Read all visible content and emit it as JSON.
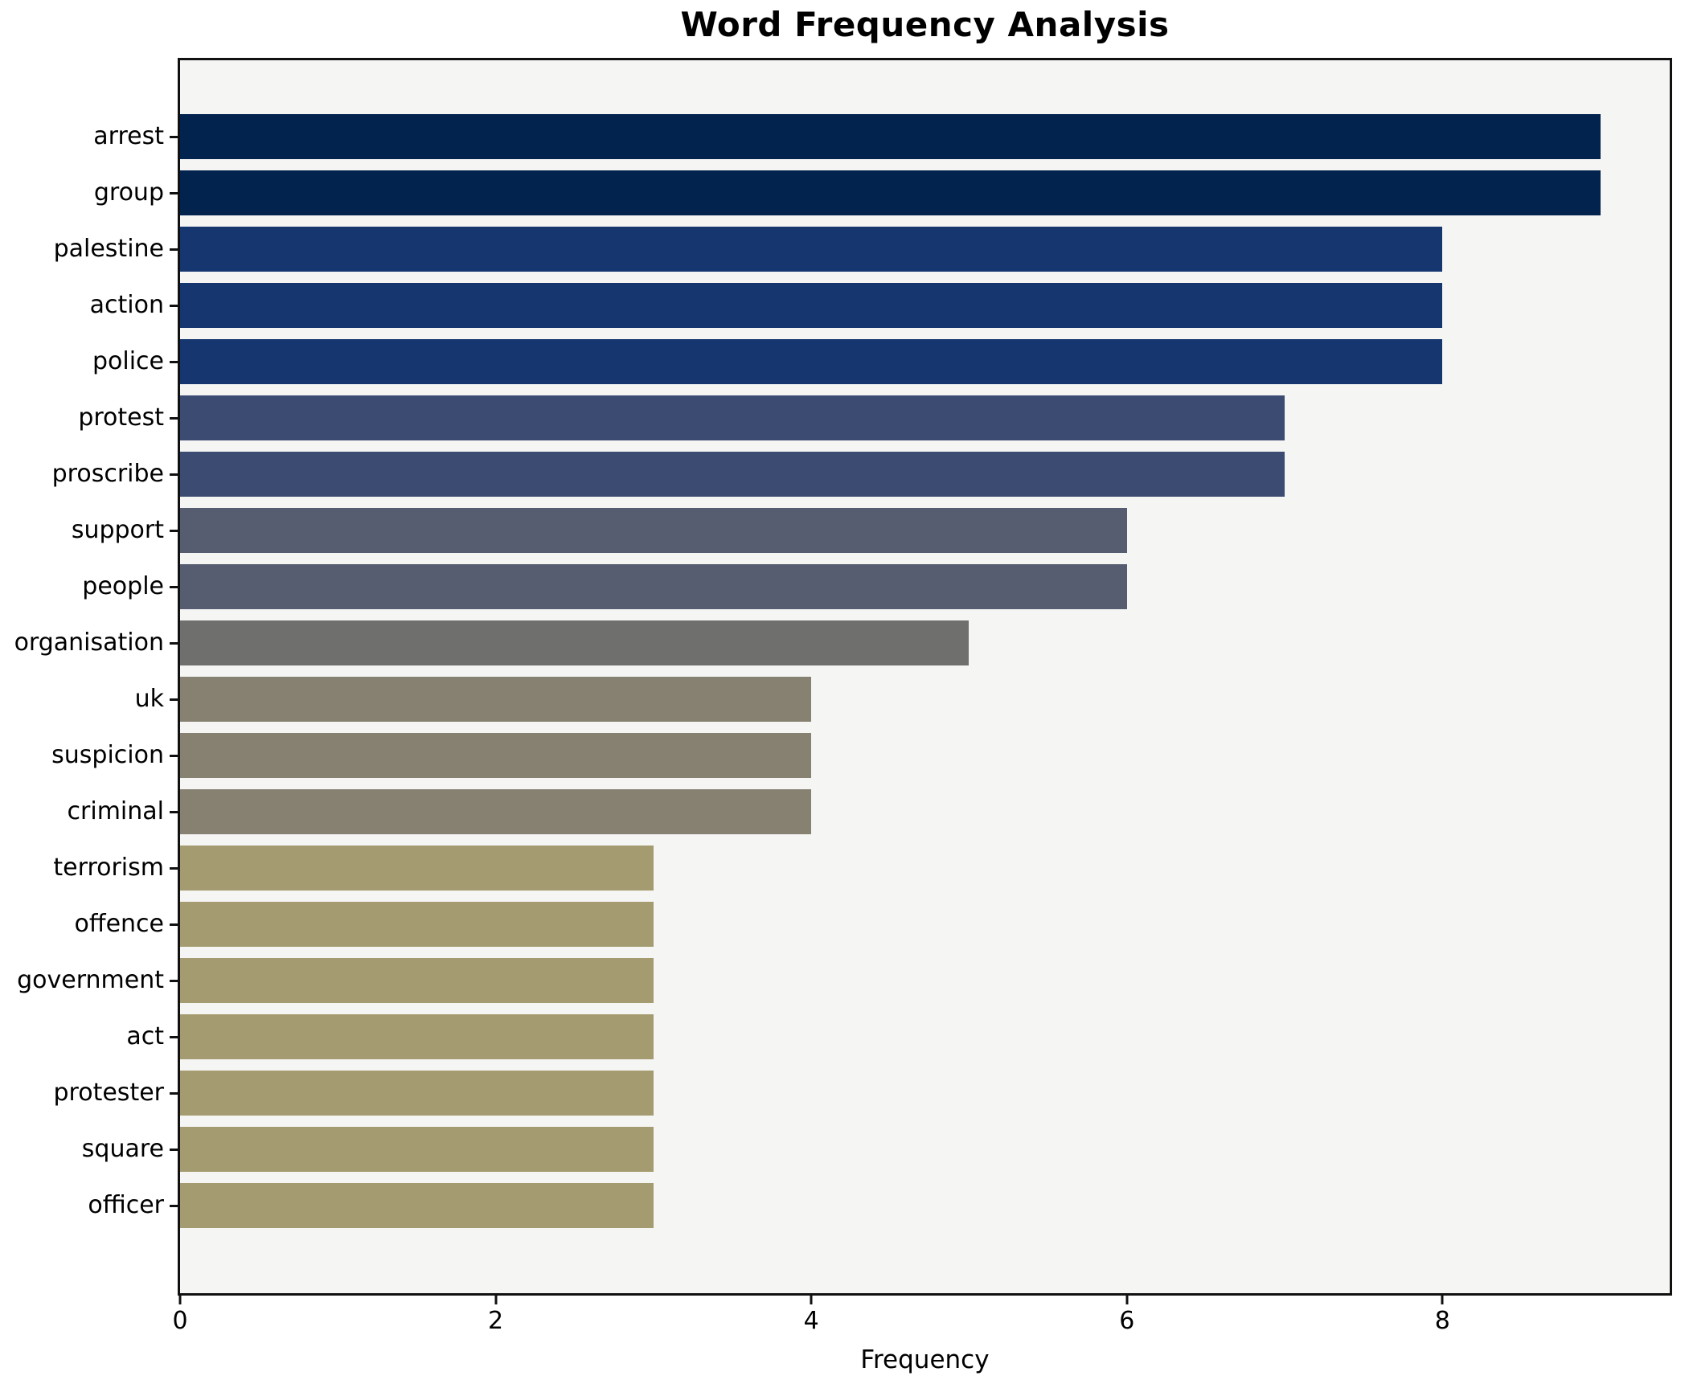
{
  "chart_data": {
    "type": "bar",
    "orientation": "horizontal",
    "title": "Word Frequency Analysis",
    "xlabel": "Frequency",
    "ylabel": "",
    "categories": [
      "arrest",
      "group",
      "palestine",
      "action",
      "police",
      "protest",
      "proscribe",
      "support",
      "people",
      "organisation",
      "uk",
      "suspicion",
      "criminal",
      "terrorism",
      "offence",
      "government",
      "act",
      "protester",
      "square",
      "officer"
    ],
    "values": [
      9,
      9,
      8,
      8,
      8,
      7,
      7,
      6,
      6,
      5,
      4,
      4,
      4,
      3,
      3,
      3,
      3,
      3,
      3,
      3
    ],
    "xlim": [
      0,
      9.44
    ],
    "xticks": [
      0,
      2,
      4,
      6,
      8
    ],
    "grid": false,
    "legend_position": "none",
    "value_colors": {
      "9": "#03234f",
      "8": "#15366f",
      "7": "#3c4b71",
      "6": "#575d70",
      "5": "#6f6f6e",
      "4": "#868171",
      "3": "#a49c70"
    },
    "plot_background": "#f5f5f4",
    "spine_color": "#111111"
  }
}
